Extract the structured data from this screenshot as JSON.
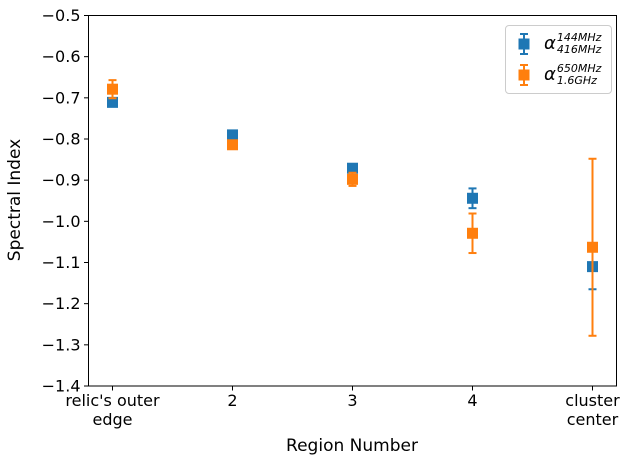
{
  "chart_data": {
    "type": "scatter",
    "title": "",
    "xlabel": "Region Number",
    "ylabel": "Spectral Index",
    "categories": [
      "relic's outer\nedge",
      "2",
      "3",
      "4",
      "cluster\ncenter"
    ],
    "x": [
      1,
      2,
      3,
      4,
      5
    ],
    "ylim": [
      -1.4,
      -0.5
    ],
    "yticks": [
      -0.5,
      -0.6,
      -0.7,
      -0.8,
      -0.9,
      -1.0,
      -1.1,
      -1.2,
      -1.3,
      -1.4
    ],
    "grid": false,
    "legend_position": "upper right",
    "marker": "square",
    "series": [
      {
        "name": "alpha-144MHz-416MHz",
        "label": {
          "alpha": "α",
          "sup": "144MHz",
          "sub": "416MHz"
        },
        "color": "#1f77b4",
        "values": [
          -0.711,
          -0.79,
          -0.871,
          -0.944,
          -1.11
        ],
        "errors": [
          0.01,
          0.006,
          0.006,
          0.024,
          0.055
        ]
      },
      {
        "name": "alpha-650MHz-1.6GHz",
        "label": {
          "alpha": "α",
          "sup": "650MHz",
          "sub": "1.6GHz"
        },
        "color": "#ff7f0e",
        "values": [
          -0.679,
          -0.814,
          -0.898,
          -1.029,
          -1.063
        ],
        "errors": [
          0.022,
          0.008,
          0.016,
          0.048,
          0.215
        ]
      }
    ]
  }
}
